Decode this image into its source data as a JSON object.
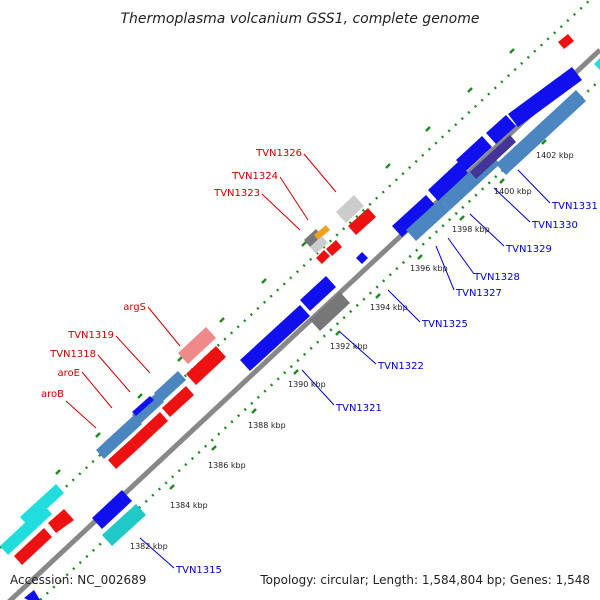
{
  "title": "Thermoplasma volcanium GSS1, complete genome",
  "accession_label": "Accession: NC_002689",
  "summary_label": "Topology: circular; Length: 1,584,804 bp; Genes: 1,548",
  "colors": {
    "backbone": "#888888",
    "tick": "#1f8a1f",
    "forward_gene_red": "#ee1111",
    "reverse_gene_blue": "#1010ee",
    "steelblue": "#4c86c0",
    "cyan": "#22dddd",
    "darkcyan": "#20c8c8",
    "pink": "#f08a8a",
    "darkgray": "#777777",
    "lightgray": "#cccccc",
    "orange": "#f0a020",
    "purple": "#443399",
    "label_red": "#cc0000",
    "label_blue": "#0000cc"
  },
  "ticks": [
    "1382 kbp",
    "1384 kbp",
    "1386 kbp",
    "1388 kbp",
    "1390 kbp",
    "1392 kbp",
    "1394 kbp",
    "1396 kbp",
    "1398 kbp",
    "1400 kbp",
    "1402 kbp"
  ],
  "upper_labels": [
    "aroB",
    "aroE",
    "TVN1318",
    "TVN1319",
    "argS",
    "TVN1323",
    "TVN1324",
    "TVN1326"
  ],
  "lower_labels": [
    "TVN1315",
    "TVN1321",
    "TVN1322",
    "TVN1325",
    "TVN1327",
    "TVN1328",
    "TVN1329",
    "TVN1330",
    "TVN1331"
  ]
}
